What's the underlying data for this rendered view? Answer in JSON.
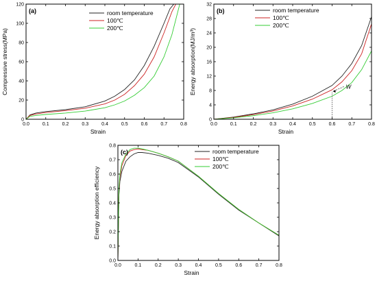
{
  "colors": {
    "room": "#222222",
    "c100": "#cc2222",
    "c200": "#33cc33"
  },
  "chart_data": [
    {
      "id": "a",
      "type": "line",
      "panel_label": "(a)",
      "xlabel": "Strain",
      "ylabel": "Compressive stress(MPa)",
      "xlim": [
        0,
        0.8
      ],
      "ylim": [
        0,
        120
      ],
      "xticks": [
        0.0,
        0.1,
        0.2,
        0.3,
        0.4,
        0.5,
        0.6,
        0.7,
        0.8
      ],
      "yticks": [
        0,
        20,
        40,
        60,
        80,
        100,
        120
      ],
      "xtick_labels": [
        "0.0",
        "0.1",
        "0.2",
        "0.3",
        "0.4",
        "0.5",
        "0.6",
        "0.7",
        "0.8"
      ],
      "ytick_labels": [
        "0",
        "20",
        "40",
        "60",
        "80",
        "100",
        "120"
      ],
      "legend_position": "top-center",
      "grid": false,
      "series": [
        {
          "name": "room temperature",
          "color_key": "room",
          "x": [
            0,
            0.02,
            0.05,
            0.1,
            0.2,
            0.3,
            0.4,
            0.45,
            0.5,
            0.55,
            0.6,
            0.65,
            0.7,
            0.73,
            0.75
          ],
          "y": [
            0,
            4.5,
            6.5,
            8,
            10,
            13,
            19,
            24,
            31,
            41,
            56,
            76,
            100,
            115,
            120
          ]
        },
        {
          "name": "100℃",
          "color_key": "c100",
          "x": [
            0,
            0.02,
            0.05,
            0.1,
            0.2,
            0.3,
            0.4,
            0.45,
            0.5,
            0.55,
            0.6,
            0.65,
            0.7,
            0.74,
            0.76
          ],
          "y": [
            0,
            4,
            5.5,
            7,
            9,
            11.5,
            16,
            20,
            26,
            35,
            47,
            65,
            90,
            112,
            120
          ]
        },
        {
          "name": "200℃",
          "color_key": "c200",
          "x": [
            0,
            0.02,
            0.05,
            0.1,
            0.2,
            0.3,
            0.4,
            0.45,
            0.5,
            0.55,
            0.6,
            0.65,
            0.7,
            0.74,
            0.78
          ],
          "y": [
            0,
            3,
            4,
            5,
            6.5,
            8.5,
            12,
            15,
            19,
            25,
            33,
            45,
            65,
            88,
            120
          ]
        }
      ]
    },
    {
      "id": "b",
      "type": "line",
      "panel_label": "(b)",
      "xlabel": "Strain",
      "ylabel": "Energy absorption(MJ/m³)",
      "xlim": [
        0,
        0.8
      ],
      "ylim": [
        0,
        32
      ],
      "xticks": [
        0.0,
        0.1,
        0.2,
        0.3,
        0.4,
        0.5,
        0.6,
        0.7,
        0.8
      ],
      "yticks": [
        0,
        4,
        8,
        12,
        16,
        20,
        24,
        28,
        32
      ],
      "xtick_labels": [
        "0.0",
        "0.1",
        "0.2",
        "0.3",
        "0.4",
        "0.5",
        "0.6",
        "0.7",
        "0.8"
      ],
      "ytick_labels": [
        "0",
        "4",
        "8",
        "12",
        "16",
        "20",
        "24",
        "28",
        "32"
      ],
      "legend_position": "top-center",
      "grid": false,
      "annotation": {
        "text": "W",
        "x": 0.6,
        "y": 7.6,
        "label_x": 0.67,
        "label_y": 8.5
      },
      "series": [
        {
          "name": "room temperature",
          "color_key": "room",
          "x": [
            0,
            0.1,
            0.2,
            0.3,
            0.4,
            0.5,
            0.6,
            0.65,
            0.7,
            0.75,
            0.8
          ],
          "y": [
            0,
            0.6,
            1.5,
            2.6,
            4.2,
            6.4,
            9.4,
            12,
            15.5,
            20.5,
            28.5
          ]
        },
        {
          "name": "100℃",
          "color_key": "c100",
          "x": [
            0,
            0.1,
            0.2,
            0.3,
            0.4,
            0.5,
            0.6,
            0.65,
            0.7,
            0.75,
            0.8
          ],
          "y": [
            0,
            0.5,
            1.3,
            2.3,
            3.7,
            5.6,
            8.2,
            10.4,
            13.5,
            18.2,
            26.5
          ]
        },
        {
          "name": "200℃",
          "color_key": "c200",
          "x": [
            0,
            0.1,
            0.2,
            0.3,
            0.4,
            0.5,
            0.6,
            0.65,
            0.7,
            0.75,
            0.8
          ],
          "y": [
            0,
            0.4,
            1.0,
            1.8,
            2.9,
            4.4,
            6.4,
            8.0,
            10.2,
            13.8,
            19.0
          ]
        }
      ]
    },
    {
      "id": "c",
      "type": "line",
      "panel_label": "(c)",
      "xlabel": "Strain",
      "ylabel": "Energy absorption efficiency",
      "xlim": [
        0,
        0.8
      ],
      "ylim": [
        0,
        0.8
      ],
      "xticks": [
        0.0,
        0.1,
        0.2,
        0.3,
        0.4,
        0.5,
        0.6,
        0.7,
        0.8
      ],
      "yticks": [
        0.0,
        0.1,
        0.2,
        0.3,
        0.4,
        0.5,
        0.6,
        0.7,
        0.8
      ],
      "xtick_labels": [
        "0.0",
        "0.1",
        "0.2",
        "0.3",
        "0.4",
        "0.5",
        "0.6",
        "0.7",
        "0.8"
      ],
      "ytick_labels": [
        "0.0",
        "0.1",
        "0.2",
        "0.3",
        "0.4",
        "0.5",
        "0.6",
        "0.7",
        "0.8"
      ],
      "legend_position": "top-right",
      "grid": false,
      "series": [
        {
          "name": "room temperature",
          "color_key": "room",
          "x": [
            0,
            0.005,
            0.01,
            0.02,
            0.04,
            0.06,
            0.08,
            0.1,
            0.12,
            0.15,
            0.2,
            0.25,
            0.3,
            0.4,
            0.5,
            0.6,
            0.7,
            0.8
          ],
          "y": [
            0,
            0.45,
            0.55,
            0.62,
            0.69,
            0.72,
            0.74,
            0.75,
            0.75,
            0.745,
            0.73,
            0.71,
            0.68,
            0.58,
            0.46,
            0.35,
            0.26,
            0.17
          ]
        },
        {
          "name": "100℃",
          "color_key": "c100",
          "x": [
            0,
            0.005,
            0.01,
            0.02,
            0.04,
            0.06,
            0.08,
            0.1,
            0.12,
            0.15,
            0.2,
            0.25,
            0.3,
            0.4,
            0.5,
            0.6,
            0.7,
            0.8
          ],
          "y": [
            0,
            0.48,
            0.58,
            0.66,
            0.73,
            0.76,
            0.77,
            0.775,
            0.77,
            0.765,
            0.745,
            0.72,
            0.69,
            0.585,
            0.465,
            0.355,
            0.26,
            0.175
          ]
        },
        {
          "name": "200℃",
          "color_key": "c200",
          "x": [
            0,
            0.005,
            0.01,
            0.02,
            0.04,
            0.06,
            0.08,
            0.1,
            0.12,
            0.15,
            0.2,
            0.25,
            0.3,
            0.4,
            0.5,
            0.6,
            0.7,
            0.8
          ],
          "y": [
            0,
            0.5,
            0.6,
            0.68,
            0.74,
            0.77,
            0.78,
            0.78,
            0.775,
            0.765,
            0.745,
            0.72,
            0.69,
            0.585,
            0.465,
            0.355,
            0.26,
            0.175
          ]
        }
      ]
    }
  ]
}
